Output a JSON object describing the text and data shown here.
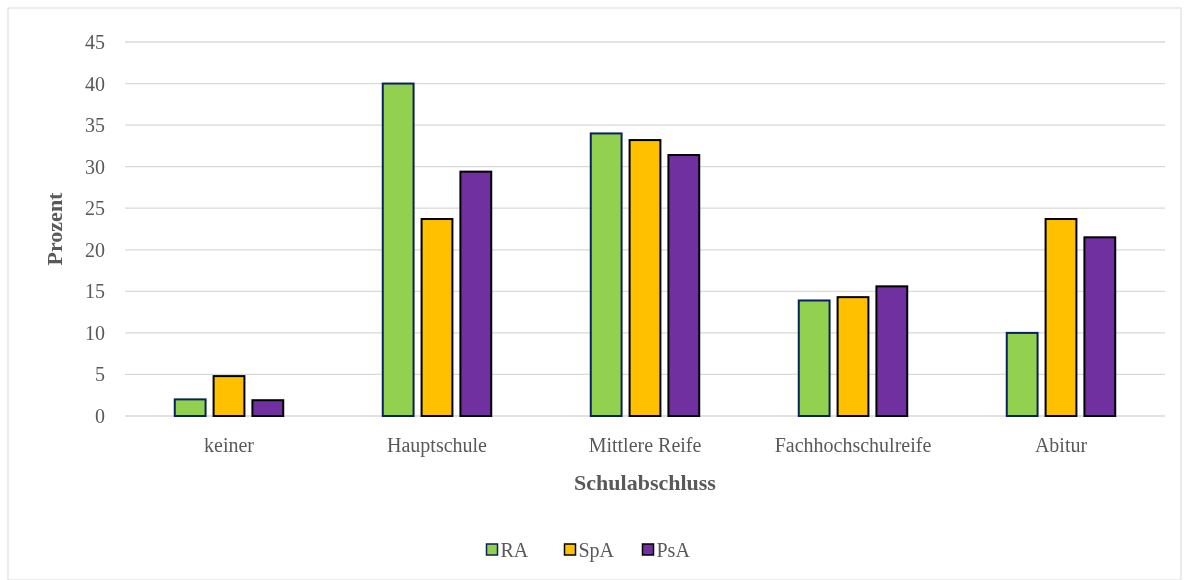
{
  "chart_data": {
    "type": "bar",
    "xlabel": "Schulabschluss",
    "ylabel": "Prozent",
    "categories": [
      "keiner",
      "Hauptschule",
      "Mittlere Reife",
      "Fachhochschulreife",
      "Abitur"
    ],
    "series": [
      {
        "name": "RA",
        "color": "#92d050",
        "values": [
          2.0,
          40.0,
          34.0,
          13.9,
          10.0
        ]
      },
      {
        "name": "SpA",
        "color": "#ffc000",
        "values": [
          4.8,
          23.7,
          33.2,
          14.3,
          23.7
        ]
      },
      {
        "name": "PsA",
        "color": "#7030a0",
        "values": [
          1.9,
          29.4,
          31.4,
          15.6,
          21.5
        ]
      }
    ],
    "ylim": [
      0,
      45
    ],
    "yticks": [
      0,
      5,
      10,
      15,
      20,
      25,
      30,
      35,
      40,
      45
    ],
    "grid": "y",
    "legend": "bottom"
  }
}
